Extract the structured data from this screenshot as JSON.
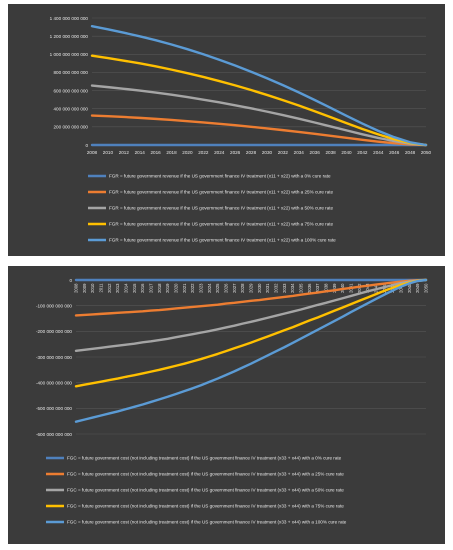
{
  "chart_data": [
    {
      "type": "line",
      "title": "",
      "xlabel": "",
      "ylabel": "",
      "x": [
        2008,
        2010,
        2012,
        2014,
        2016,
        2018,
        2020,
        2022,
        2024,
        2026,
        2028,
        2030,
        2032,
        2034,
        2036,
        2038,
        2040,
        2042,
        2044,
        2046,
        2048,
        2050
      ],
      "ylim": [
        0,
        1400000000000
      ],
      "yticks": [
        0,
        200000000000,
        400000000000,
        600000000000,
        800000000000,
        1000000000000,
        1200000000000,
        1400000000000
      ],
      "ytick_labels": [
        "0",
        "200 000 000 000",
        "400 000 000 000",
        "600 000 000 000",
        "800 000 000 000",
        "1 000 000 000 000",
        "1 200 000 000 000",
        "1 400 000 000 000"
      ],
      "xtick_labels": [
        "2008",
        "2010",
        "2012",
        "2014",
        "2016",
        "2018",
        "2020",
        "2022",
        "2024",
        "2026",
        "2028",
        "2030",
        "2032",
        "2034",
        "2036",
        "2038",
        "2040",
        "2042",
        "2044",
        "2046",
        "2048",
        "2050"
      ],
      "grid": true,
      "legend_position": "bottom",
      "series": [
        {
          "name": "FGR = future government revenue if the US government finance IV treatment (x11 + x22) with a 0% cure rate",
          "color": "#4f81bd",
          "values": [
            0,
            0,
            0,
            0,
            0,
            0,
            0,
            0,
            0,
            0,
            0,
            0,
            0,
            0,
            0,
            0,
            0,
            0,
            0,
            0,
            0,
            0
          ]
        },
        {
          "name": "FGR = future government revenue if the US government finance IV treatment (x11 + x22) with a 25% cure rate",
          "color": "#ed7d31",
          "values": [
            325000000000,
            318000000000,
            309000000000,
            299000000000,
            288000000000,
            276000000000,
            263000000000,
            249000000000,
            234000000000,
            218000000000,
            201000000000,
            183000000000,
            164000000000,
            144000000000,
            123000000000,
            101000000000,
            79000000000,
            57000000000,
            37000000000,
            20000000000,
            7000000000,
            0
          ]
        },
        {
          "name": "FGR = future government revenue if the US government finance IV treatment (x11 + x22) with a 50% cure rate",
          "color": "#a5a5a5",
          "values": [
            655000000000,
            638000000000,
            620000000000,
            600000000000,
            578000000000,
            554000000000,
            528000000000,
            500000000000,
            470000000000,
            438000000000,
            404000000000,
            368000000000,
            330000000000,
            290000000000,
            248000000000,
            205000000000,
            161000000000,
            118000000000,
            78000000000,
            43000000000,
            15000000000,
            0
          ]
        },
        {
          "name": "FGR = future government revenue if the US government finance IV treatment (x11 + x22) with a 75% cure rate",
          "color": "#ffc000",
          "values": [
            985000000000,
            958000000000,
            930000000000,
            900000000000,
            867000000000,
            831000000000,
            792000000000,
            750000000000,
            705000000000,
            657000000000,
            606000000000,
            552000000000,
            495000000000,
            435000000000,
            372000000000,
            307000000000,
            241000000000,
            177000000000,
            117000000000,
            64000000000,
            23000000000,
            0
          ]
        },
        {
          "name": "FGR = future government revenue if the US government finance IV treatment (x11 + x22) with a 100% cure rate",
          "color": "#5b9bd5",
          "values": [
            1310000000000,
            1275000000000,
            1238000000000,
            1198000000000,
            1155000000000,
            1108000000000,
            1056000000000,
            1000000000000,
            940000000000,
            876000000000,
            808000000000,
            736000000000,
            660000000000,
            580000000000,
            496000000000,
            410000000000,
            322000000000,
            236000000000,
            156000000000,
            86000000000,
            30000000000,
            0
          ]
        }
      ]
    },
    {
      "type": "line",
      "title": "",
      "xlabel": "",
      "ylabel": "",
      "x": [
        2008,
        2009,
        2010,
        2011,
        2012,
        2013,
        2014,
        2015,
        2016,
        2017,
        2018,
        2019,
        2020,
        2021,
        2022,
        2023,
        2024,
        2025,
        2026,
        2027,
        2028,
        2029,
        2030,
        2031,
        2032,
        2033,
        2034,
        2035,
        2036,
        2037,
        2038,
        2039,
        2040,
        2041,
        2042,
        2043,
        2044,
        2045,
        2046,
        2047,
        2048,
        2049,
        2050
      ],
      "ylim": [
        -600000000000,
        0
      ],
      "yticks": [
        0,
        -100000000000,
        -200000000000,
        -300000000000,
        -400000000000,
        -500000000000,
        -600000000000
      ],
      "ytick_labels": [
        "0",
        "-100 000 000 000",
        "-200 000 000 000",
        "-300 000 000 000",
        "-400 000 000 000",
        "-500 000 000 000",
        "-600 000 000 000"
      ],
      "xtick_labels": [
        "2008",
        "2009",
        "2010",
        "2011",
        "2012",
        "2013",
        "2014",
        "2015",
        "2016",
        "2017",
        "2018",
        "2019",
        "2020",
        "2021",
        "2022",
        "2023",
        "2024",
        "2025",
        "2026",
        "2027",
        "2028",
        "2029",
        "2030",
        "2031",
        "2032",
        "2033",
        "2034",
        "2035",
        "2036",
        "2037",
        "2038",
        "2039",
        "2040",
        "2041",
        "2042",
        "2043",
        "2044",
        "2045",
        "2046",
        "2047",
        "2048",
        "2049",
        "2050"
      ],
      "grid": true,
      "legend_position": "bottom",
      "series": [
        {
          "name": "FGC = future government cost (not including treatment cost) if the US government finance IV treatment (x33 + x44) with a 0% cure rate",
          "color": "#4f81bd",
          "values": [
            0,
            0,
            0,
            0,
            0,
            0,
            0,
            0,
            0,
            0,
            0,
            0,
            0,
            0,
            0,
            0,
            0,
            0,
            0,
            0,
            0,
            0,
            0,
            0,
            0,
            0,
            0,
            0,
            0,
            0,
            0,
            0,
            0,
            0,
            0,
            0,
            0,
            0,
            0,
            0,
            0,
            0,
            0
          ]
        },
        {
          "name": "FGC = future government cost (not including treatment cost) if the US government finance IV treatment (x33 + x44) with a 25% cure rate",
          "color": "#ed7d31",
          "values": [
            -138000000000,
            -136000000000,
            -134000000000,
            -132000000000,
            -130000000000,
            -128000000000,
            -126000000000,
            -124000000000,
            -122000000000,
            -119000000000,
            -117000000000,
            -114000000000,
            -111000000000,
            -108000000000,
            -105000000000,
            -102000000000,
            -99000000000,
            -96000000000,
            -92000000000,
            -89000000000,
            -85000000000,
            -81000000000,
            -78000000000,
            -74000000000,
            -70000000000,
            -66000000000,
            -62000000000,
            -57000000000,
            -53000000000,
            -49000000000,
            -44000000000,
            -40000000000,
            -35000000000,
            -31000000000,
            -26000000000,
            -22000000000,
            -18000000000,
            -14000000000,
            -10000000000,
            -6000000000,
            -3000000000,
            -1000000000,
            0
          ]
        },
        {
          "name": "FGC = future government cost (not including treatment cost) if the US government finance IV treatment (x33 + x44) with a 50% cure rate",
          "color": "#a5a5a5",
          "values": [
            -276000000000,
            -272000000000,
            -268000000000,
            -264000000000,
            -260000000000,
            -256000000000,
            -252000000000,
            -248000000000,
            -243000000000,
            -239000000000,
            -234000000000,
            -229000000000,
            -223000000000,
            -217000000000,
            -211000000000,
            -205000000000,
            -199000000000,
            -192000000000,
            -185000000000,
            -178000000000,
            -170000000000,
            -163000000000,
            -155000000000,
            -147000000000,
            -139000000000,
            -131000000000,
            -123000000000,
            -115000000000,
            -106000000000,
            -97000000000,
            -89000000000,
            -80000000000,
            -71000000000,
            -62000000000,
            -53000000000,
            -44000000000,
            -36000000000,
            -28000000000,
            -20000000000,
            -12000000000,
            -6000000000,
            -2000000000,
            0
          ]
        },
        {
          "name": "FGC = future government cost (not including treatment cost) if the US government finance IV treatment (x33 + x44) with a 75% cure rate",
          "color": "#ffc000",
          "values": [
            -414000000000,
            -408000000000,
            -402000000000,
            -396000000000,
            -390000000000,
            -384000000000,
            -377000000000,
            -371000000000,
            -364000000000,
            -357000000000,
            -350000000000,
            -342000000000,
            -334000000000,
            -326000000000,
            -317000000000,
            -308000000000,
            -298000000000,
            -288000000000,
            -277000000000,
            -266000000000,
            -255000000000,
            -244000000000,
            -232000000000,
            -220000000000,
            -208000000000,
            -196000000000,
            -184000000000,
            -171000000000,
            -158000000000,
            -146000000000,
            -133000000000,
            -120000000000,
            -107000000000,
            -94000000000,
            -81000000000,
            -68000000000,
            -55000000000,
            -42000000000,
            -30000000000,
            -19000000000,
            -10000000000,
            -3000000000,
            0
          ]
        },
        {
          "name": "FGC = future government cost (not including treatment cost) if the US government finance IV treatment (x33 + x44) with a 100% cure rate",
          "color": "#5b9bd5",
          "values": [
            -552000000000,
            -544000000000,
            -536000000000,
            -528000000000,
            -520000000000,
            -512000000000,
            -503000000000,
            -494000000000,
            -485000000000,
            -475000000000,
            -465000000000,
            -455000000000,
            -444000000000,
            -433000000000,
            -422000000000,
            -410000000000,
            -397000000000,
            -384000000000,
            -370000000000,
            -356000000000,
            -341000000000,
            -326000000000,
            -310000000000,
            -294000000000,
            -278000000000,
            -262000000000,
            -245000000000,
            -228000000000,
            -211000000000,
            -194000000000,
            -177000000000,
            -160000000000,
            -143000000000,
            -125000000000,
            -108000000000,
            -91000000000,
            -74000000000,
            -57000000000,
            -41000000000,
            -26000000000,
            -13000000000,
            -4000000000,
            0
          ]
        }
      ]
    }
  ]
}
